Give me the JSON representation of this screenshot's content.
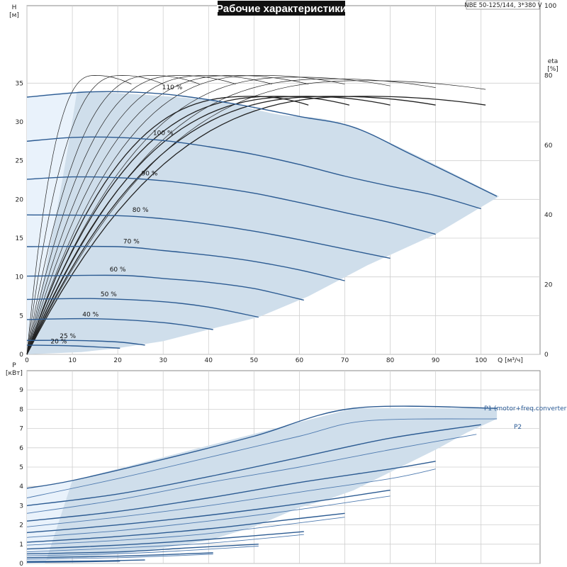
{
  "chart_data": {
    "type": "line",
    "title": "Рабочие характеристики",
    "model": "NBE 50-125/144, 3*380 V",
    "top": {
      "xlabel": "Q [м³/ч]",
      "ylabel": "H",
      "yunit": "[м]",
      "y2label": "eta",
      "y2unit": "[%]",
      "xlim": [
        0,
        113
      ],
      "ylim": [
        0,
        45
      ],
      "y2lim": [
        0,
        100
      ],
      "xticks": [
        0,
        10,
        20,
        30,
        40,
        50,
        60,
        70,
        80,
        90,
        100
      ],
      "yticks": [
        0,
        5,
        10,
        15,
        20,
        25,
        30,
        35
      ],
      "y2ticks": [
        0,
        20,
        40,
        60,
        80,
        100
      ],
      "grid": true,
      "operating_region": {
        "upper": [
          [
            0,
            33.2
          ],
          [
            15,
            33.9
          ],
          [
            40,
            32.8
          ],
          [
            55,
            31.0
          ],
          [
            72,
            29.3
          ],
          [
            104,
            20.4
          ]
        ],
        "lower_limit": [
          [
            104,
            20.4
          ],
          [
            90,
            15.5
          ],
          [
            75,
            11.5
          ],
          [
            62,
            7.5
          ],
          [
            51,
            4.8
          ],
          [
            40,
            3.2
          ],
          [
            30,
            1.7
          ],
          [
            20,
            0.8
          ],
          [
            12,
            0.3
          ],
          [
            0,
            0
          ]
        ],
        "min_flow": [
          [
            0,
            0
          ],
          [
            6,
            15
          ],
          [
            11,
            33.9
          ]
        ]
      },
      "head_curves": [
        {
          "name": "110 %",
          "q_max": 103.5,
          "points": [
            [
              0,
              33.2
            ],
            [
              15,
              33.9
            ],
            [
              30,
              33.6
            ],
            [
              45,
              32.4
            ],
            [
              60,
              30.7
            ],
            [
              72,
              29.3
            ],
            [
              85,
              25.7
            ],
            [
              103.5,
              20.4
            ]
          ]
        },
        {
          "name": "100 %",
          "q_max": 100,
          "points": [
            [
              0,
              27.5
            ],
            [
              10,
              28.0
            ],
            [
              20,
              28.0
            ],
            [
              30,
              27.6
            ],
            [
              40,
              26.8
            ],
            [
              50,
              25.8
            ],
            [
              60,
              24.5
            ],
            [
              70,
              23.0
            ],
            [
              80,
              21.7
            ],
            [
              90,
              20.5
            ],
            [
              100,
              18.8
            ]
          ]
        },
        {
          "name": "90 %",
          "q_max": 90,
          "points": [
            [
              0,
              22.6
            ],
            [
              10,
              22.9
            ],
            [
              20,
              22.8
            ],
            [
              30,
              22.4
            ],
            [
              40,
              21.7
            ],
            [
              50,
              20.8
            ],
            [
              60,
              19.6
            ],
            [
              70,
              18.3
            ],
            [
              80,
              17.0
            ],
            [
              90,
              15.5
            ]
          ]
        },
        {
          "name": "80 %",
          "q_max": 80,
          "points": [
            [
              0,
              18.0
            ],
            [
              20,
              17.9
            ],
            [
              30,
              17.5
            ],
            [
              40,
              16.8
            ],
            [
              50,
              15.9
            ],
            [
              60,
              14.8
            ],
            [
              70,
              13.6
            ],
            [
              80,
              12.4
            ]
          ]
        },
        {
          "name": "70 %",
          "q_max": 70,
          "points": [
            [
              0,
              13.9
            ],
            [
              20,
              13.9
            ],
            [
              30,
              13.4
            ],
            [
              40,
              12.8
            ],
            [
              50,
              12.0
            ],
            [
              60,
              10.9
            ],
            [
              70,
              9.5
            ]
          ]
        },
        {
          "name": "60 %",
          "q_max": 61,
          "points": [
            [
              0,
              10.1
            ],
            [
              20,
              10.2
            ],
            [
              30,
              9.8
            ],
            [
              40,
              9.3
            ],
            [
              50,
              8.5
            ],
            [
              61,
              7.0
            ]
          ]
        },
        {
          "name": "50 %",
          "q_max": 51,
          "points": [
            [
              0,
              7.1
            ],
            [
              15,
              7.2
            ],
            [
              30,
              6.8
            ],
            [
              40,
              6.1
            ],
            [
              51,
              4.8
            ]
          ]
        },
        {
          "name": "40 %",
          "q_max": 41,
          "points": [
            [
              0,
              4.5
            ],
            [
              15,
              4.6
            ],
            [
              30,
              4.1
            ],
            [
              41,
              3.2
            ]
          ]
        },
        {
          "name": "25 %",
          "q_max": 26,
          "points": [
            [
              0,
              1.8
            ],
            [
              10,
              1.8
            ],
            [
              20,
              1.6
            ],
            [
              26,
              1.2
            ]
          ]
        },
        {
          "name": "20 %",
          "q_max": 20.5,
          "points": [
            [
              0,
              1.2
            ],
            [
              10,
              1.1
            ],
            [
              20.5,
              0.8
            ]
          ]
        }
      ],
      "efficiency_curves": [
        {
          "q_peak": 15,
          "eta_peak": 80,
          "q_end": 23
        },
        {
          "q_peak": 21,
          "eta_peak": 80,
          "q_end": 30
        },
        {
          "q_peak": 28,
          "eta_peak": 80,
          "q_end": 38
        },
        {
          "q_peak": 34,
          "eta_peak": 80,
          "q_end": 46
        },
        {
          "q_peak": 40,
          "eta_peak": 80,
          "q_end": 54
        },
        {
          "q_peak": 46,
          "eta_peak": 80,
          "q_end": 62
        },
        {
          "q_peak": 52,
          "eta_peak": 80,
          "q_end": 70
        },
        {
          "q_peak": 60,
          "eta_peak": 79.5,
          "q_end": 80
        },
        {
          "q_peak": 68,
          "eta_peak": 79,
          "q_end": 90
        },
        {
          "q_peak": 75,
          "eta_peak": 78.5,
          "q_end": 101
        },
        {
          "q_peak": 50,
          "eta_peak": 74,
          "q_end": 62
        },
        {
          "q_peak": 56,
          "eta_peak": 74,
          "q_end": 71
        },
        {
          "q_peak": 62,
          "eta_peak": 74,
          "q_end": 80
        },
        {
          "q_peak": 68,
          "eta_peak": 74,
          "q_end": 90
        },
        {
          "q_peak": 75,
          "eta_peak": 74,
          "q_end": 101
        }
      ]
    },
    "bottom": {
      "ylabel": "P",
      "yunit": "[кВт]",
      "xlim": [
        0,
        113
      ],
      "ylim": [
        0,
        10
      ],
      "yticks": [
        0,
        1,
        2,
        3,
        4,
        5,
        6,
        7,
        8,
        9
      ],
      "grid": true,
      "p1_label": "P1 (motor+freq.converter)",
      "p2_label": "P2",
      "operating_region": {
        "upper": [
          [
            0,
            3.9
          ],
          [
            10,
            4.3
          ],
          [
            72,
            8.05
          ],
          [
            103.5,
            8.05
          ]
        ],
        "lower": [
          [
            103.5,
            7.5
          ],
          [
            97,
            6.8
          ],
          [
            90,
            5.9
          ],
          [
            72,
            3.8
          ],
          [
            66,
            3.3
          ],
          [
            60,
            2.9
          ],
          [
            50,
            1.9
          ],
          [
            40,
            1.2
          ],
          [
            30,
            0.8
          ],
          [
            20,
            0.5
          ],
          [
            10,
            0.3
          ],
          [
            0,
            0.1
          ]
        ]
      },
      "p1_curves": [
        {
          "name": "110 %",
          "points": [
            [
              0,
              3.9
            ],
            [
              10,
              4.3
            ],
            [
              30,
              5.4
            ],
            [
              50,
              6.6
            ],
            [
              72,
              8.05
            ],
            [
              103.5,
              8.05
            ]
          ]
        },
        {
          "name": "100 %",
          "points": [
            [
              0,
              3.0
            ],
            [
              20,
              3.6
            ],
            [
              40,
              4.5
            ],
            [
              60,
              5.5
            ],
            [
              80,
              6.5
            ],
            [
              100,
              7.2
            ]
          ]
        },
        {
          "name": "90 %",
          "points": [
            [
              0,
              2.2
            ],
            [
              20,
              2.7
            ],
            [
              40,
              3.4
            ],
            [
              60,
              4.2
            ],
            [
              80,
              4.9
            ],
            [
              90,
              5.3
            ]
          ]
        },
        {
          "name": "80 %",
          "points": [
            [
              0,
              1.6
            ],
            [
              20,
              2.0
            ],
            [
              40,
              2.5
            ],
            [
              60,
              3.1
            ],
            [
              80,
              3.8
            ]
          ]
        },
        {
          "name": "70 %",
          "points": [
            [
              0,
              1.1
            ],
            [
              20,
              1.4
            ],
            [
              40,
              1.8
            ],
            [
              55,
              2.2
            ],
            [
              70,
              2.6
            ]
          ]
        },
        {
          "name": "60 %",
          "points": [
            [
              0,
              0.75
            ],
            [
              20,
              0.95
            ],
            [
              40,
              1.25
            ],
            [
              61,
              1.65
            ]
          ]
        },
        {
          "name": "50 %",
          "points": [
            [
              0,
              0.5
            ],
            [
              20,
              0.6
            ],
            [
              35,
              0.8
            ],
            [
              51,
              1.0
            ]
          ]
        },
        {
          "name": "40 %",
          "points": [
            [
              0,
              0.3
            ],
            [
              20,
              0.38
            ],
            [
              41,
              0.55
            ]
          ]
        },
        {
          "name": "25 %",
          "points": [
            [
              0,
              0.1
            ],
            [
              15,
              0.13
            ],
            [
              26,
              0.18
            ]
          ]
        },
        {
          "name": "20 %",
          "points": [
            [
              0,
              0.06
            ],
            [
              10,
              0.08
            ],
            [
              20.5,
              0.12
            ]
          ]
        }
      ],
      "p2_curves": [
        {
          "name": "110 %",
          "points": [
            [
              0,
              3.4
            ],
            [
              20,
              4.4
            ],
            [
              40,
              5.5
            ],
            [
              60,
              6.6
            ],
            [
              75,
              7.4
            ],
            [
              103.5,
              7.5
            ]
          ]
        },
        {
          "name": "100 %",
          "points": [
            [
              0,
              2.6
            ],
            [
              20,
              3.3
            ],
            [
              40,
              4.2
            ],
            [
              60,
              5.0
            ],
            [
              80,
              5.9
            ],
            [
              99,
              6.7
            ]
          ]
        },
        {
          "name": "90 %",
          "points": [
            [
              0,
              1.9
            ],
            [
              20,
              2.4
            ],
            [
              40,
              3.0
            ],
            [
              60,
              3.7
            ],
            [
              80,
              4.4
            ],
            [
              90,
              4.9
            ]
          ]
        },
        {
          "name": "80 %",
          "points": [
            [
              0,
              1.35
            ],
            [
              20,
              1.7
            ],
            [
              40,
              2.2
            ],
            [
              60,
              2.8
            ],
            [
              80,
              3.5
            ]
          ]
        },
        {
          "name": "70 %",
          "points": [
            [
              0,
              0.95
            ],
            [
              20,
              1.2
            ],
            [
              40,
              1.55
            ],
            [
              70,
              2.4
            ]
          ]
        },
        {
          "name": "60 %",
          "points": [
            [
              0,
              0.6
            ],
            [
              20,
              0.8
            ],
            [
              40,
              1.05
            ],
            [
              61,
              1.5
            ]
          ]
        },
        {
          "name": "50 %",
          "points": [
            [
              0,
              0.4
            ],
            [
              25,
              0.55
            ],
            [
              51,
              0.9
            ]
          ]
        },
        {
          "name": "40 %",
          "points": [
            [
              0,
              0.22
            ],
            [
              20,
              0.3
            ],
            [
              41,
              0.48
            ]
          ]
        }
      ]
    }
  }
}
